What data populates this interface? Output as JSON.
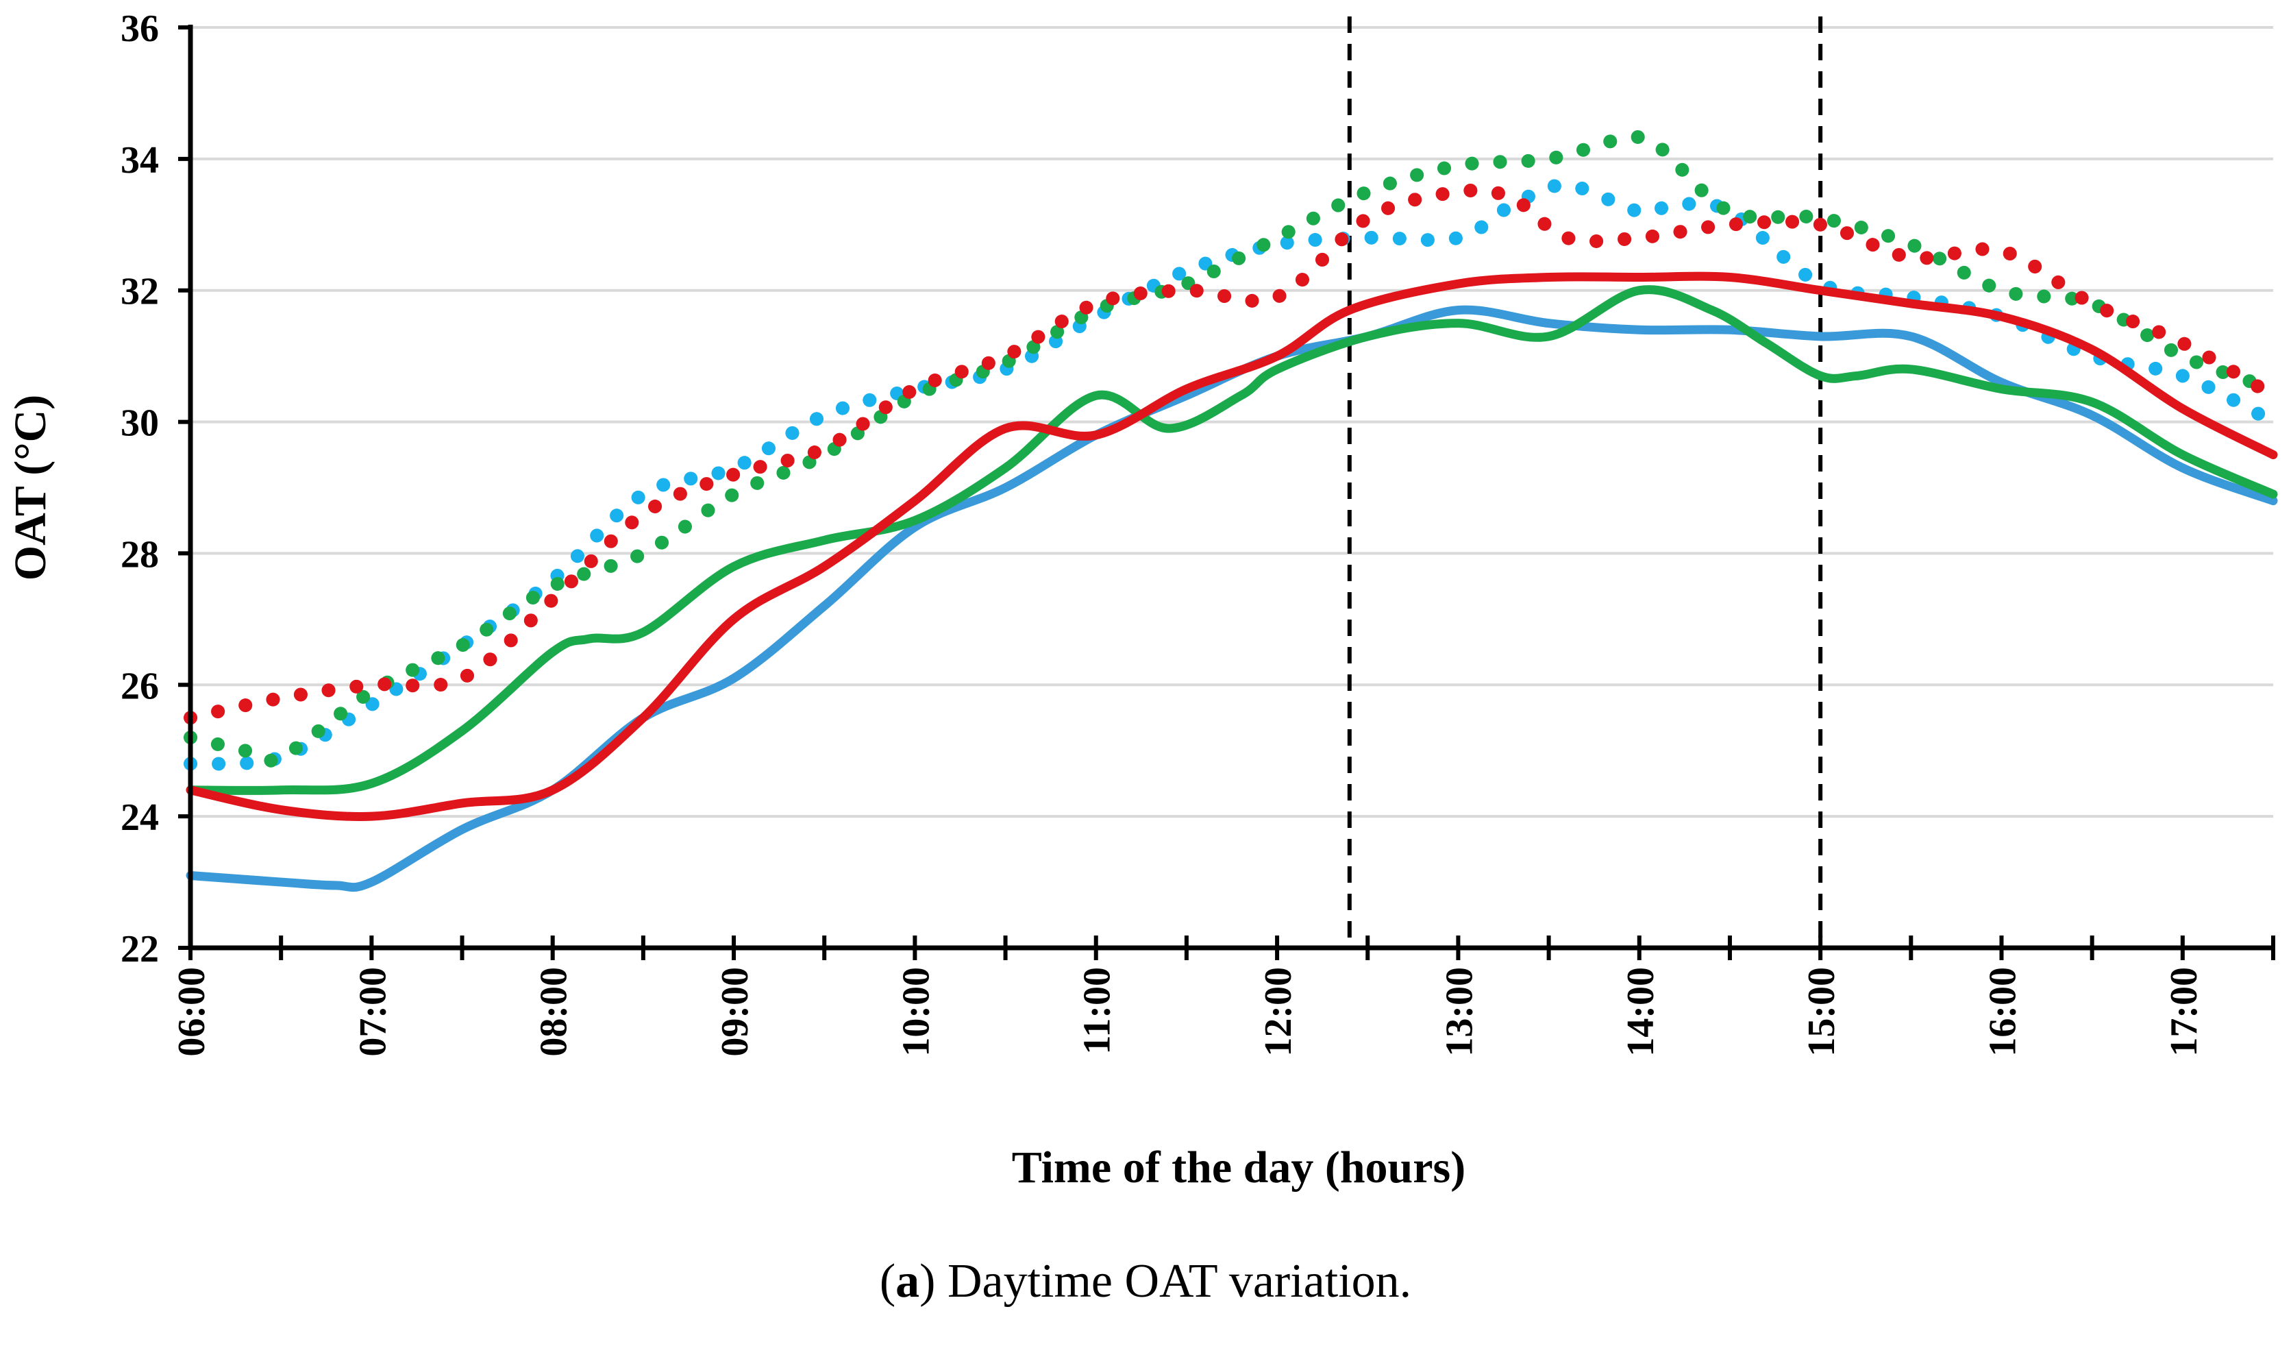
{
  "chart_data": {
    "type": "line",
    "title": "",
    "xlabel": "Time of the day (hours)",
    "ylabel": "OAT (°C)",
    "ylim": [
      22,
      36
    ],
    "yticks": [
      22,
      24,
      26,
      28,
      30,
      32,
      34,
      36
    ],
    "xlim": [
      6.0,
      17.5
    ],
    "xticks": [
      {
        "value": 6,
        "label": "06:00"
      },
      {
        "value": 7,
        "label": "07:00"
      },
      {
        "value": 8,
        "label": "08:00"
      },
      {
        "value": 9,
        "label": "09:00"
      },
      {
        "value": 10,
        "label": "10:00"
      },
      {
        "value": 11,
        "label": "11:00"
      },
      {
        "value": 12,
        "label": "12:00"
      },
      {
        "value": 13,
        "label": "13:00"
      },
      {
        "value": 14,
        "label": "14:00"
      },
      {
        "value": 15,
        "label": "15:00"
      },
      {
        "value": 16,
        "label": "16:00"
      },
      {
        "value": 17,
        "label": "17:00"
      }
    ],
    "minor_tick_step": 0.5,
    "grid": "horizontal",
    "vlines": [
      12.4,
      15.0
    ],
    "series": [
      {
        "name": "Blue (solid)",
        "color": "#3A9AD9",
        "style": "solid",
        "x": [
          6.0,
          6.5,
          6.8,
          7.0,
          7.5,
          8.0,
          8.5,
          9.0,
          9.5,
          10.0,
          10.5,
          11.0,
          11.5,
          12.0,
          12.5,
          13.0,
          13.5,
          14.0,
          14.5,
          15.0,
          15.5,
          16.0,
          16.5,
          17.0,
          17.5
        ],
        "y": [
          23.1,
          23.0,
          22.95,
          23.0,
          23.8,
          24.4,
          25.5,
          26.1,
          27.2,
          28.4,
          29.0,
          29.8,
          30.4,
          31.0,
          31.3,
          31.7,
          31.5,
          31.4,
          31.4,
          31.3,
          31.3,
          30.6,
          30.1,
          29.3,
          28.8
        ]
      },
      {
        "name": "Green (solid)",
        "color": "#1BAA4B",
        "style": "solid",
        "x": [
          6.0,
          6.5,
          7.0,
          7.5,
          8.0,
          8.2,
          8.5,
          9.0,
          9.5,
          10.0,
          10.5,
          11.0,
          11.4,
          11.8,
          12.0,
          12.5,
          13.0,
          13.5,
          14.0,
          14.4,
          14.7,
          15.0,
          15.2,
          15.5,
          16.0,
          16.5,
          17.0,
          17.5
        ],
        "y": [
          24.4,
          24.4,
          24.5,
          25.3,
          26.5,
          26.7,
          26.8,
          27.8,
          28.2,
          28.5,
          29.3,
          30.4,
          29.9,
          30.4,
          30.8,
          31.3,
          31.5,
          31.3,
          32.0,
          31.7,
          31.2,
          30.7,
          30.7,
          30.8,
          30.5,
          30.3,
          29.5,
          28.9
        ]
      },
      {
        "name": "Red (solid)",
        "color": "#E0151B",
        "style": "solid",
        "x": [
          6.0,
          6.5,
          7.0,
          7.5,
          8.0,
          8.5,
          9.0,
          9.5,
          10.0,
          10.5,
          11.0,
          11.5,
          12.0,
          12.4,
          13.0,
          13.5,
          14.0,
          14.5,
          15.0,
          15.5,
          16.0,
          16.5,
          17.0,
          17.5
        ],
        "y": [
          24.4,
          24.1,
          24.0,
          24.2,
          24.4,
          25.5,
          27.0,
          27.8,
          28.8,
          29.9,
          29.8,
          30.5,
          31.0,
          31.7,
          32.1,
          32.2,
          32.2,
          32.2,
          32.0,
          31.8,
          31.6,
          31.1,
          30.2,
          29.5
        ]
      },
      {
        "name": "Blue (dotted)",
        "color": "#1AB2EE",
        "style": "dotted",
        "x": [
          6.0,
          6.5,
          7.0,
          7.5,
          8.0,
          8.5,
          9.0,
          9.5,
          10.0,
          10.5,
          11.0,
          11.5,
          12.0,
          12.5,
          13.0,
          13.3,
          13.6,
          14.0,
          14.2,
          14.5,
          15.0,
          15.5,
          16.0,
          16.5,
          17.0,
          17.5
        ],
        "y": [
          24.8,
          24.9,
          25.7,
          26.6,
          27.6,
          28.9,
          29.3,
          30.1,
          30.5,
          30.8,
          31.6,
          32.3,
          32.7,
          32.8,
          32.8,
          33.3,
          33.6,
          33.2,
          33.3,
          33.2,
          32.1,
          31.9,
          31.6,
          31.0,
          30.7,
          30.0
        ]
      },
      {
        "name": "Green (dotted)",
        "color": "#1BAA4B",
        "style": "dotted",
        "x": [
          6.0,
          6.3,
          6.5,
          7.0,
          7.5,
          8.0,
          8.5,
          9.0,
          9.5,
          10.0,
          10.5,
          11.0,
          11.5,
          12.0,
          12.5,
          13.0,
          13.5,
          13.9,
          14.1,
          14.5,
          15.0,
          15.5,
          16.0,
          16.5,
          17.0,
          17.5
        ],
        "y": [
          25.2,
          25.0,
          24.9,
          25.9,
          26.6,
          27.5,
          28.0,
          28.9,
          29.5,
          30.4,
          30.9,
          31.7,
          32.1,
          32.8,
          33.5,
          33.9,
          34.0,
          34.3,
          34.2,
          33.2,
          33.1,
          32.7,
          32.0,
          31.8,
          31.0,
          30.5
        ]
      },
      {
        "name": "Red (dotted)",
        "color": "#E0151B",
        "style": "dotted",
        "x": [
          6.0,
          6.5,
          7.0,
          7.5,
          8.0,
          8.5,
          9.0,
          9.5,
          10.0,
          10.5,
          11.0,
          11.5,
          12.0,
          12.5,
          13.0,
          13.3,
          13.6,
          14.0,
          14.5,
          15.0,
          15.5,
          16.0,
          16.5,
          17.0,
          17.5
        ],
        "y": [
          25.5,
          25.8,
          26.0,
          26.1,
          27.3,
          28.6,
          29.2,
          29.6,
          30.5,
          31.0,
          31.8,
          32.0,
          31.9,
          33.1,
          33.5,
          33.4,
          32.8,
          32.8,
          33.0,
          33.0,
          32.5,
          32.6,
          31.8,
          31.2,
          30.4
        ]
      }
    ]
  },
  "caption": {
    "label": "a",
    "text": "Daytime OAT variation."
  }
}
